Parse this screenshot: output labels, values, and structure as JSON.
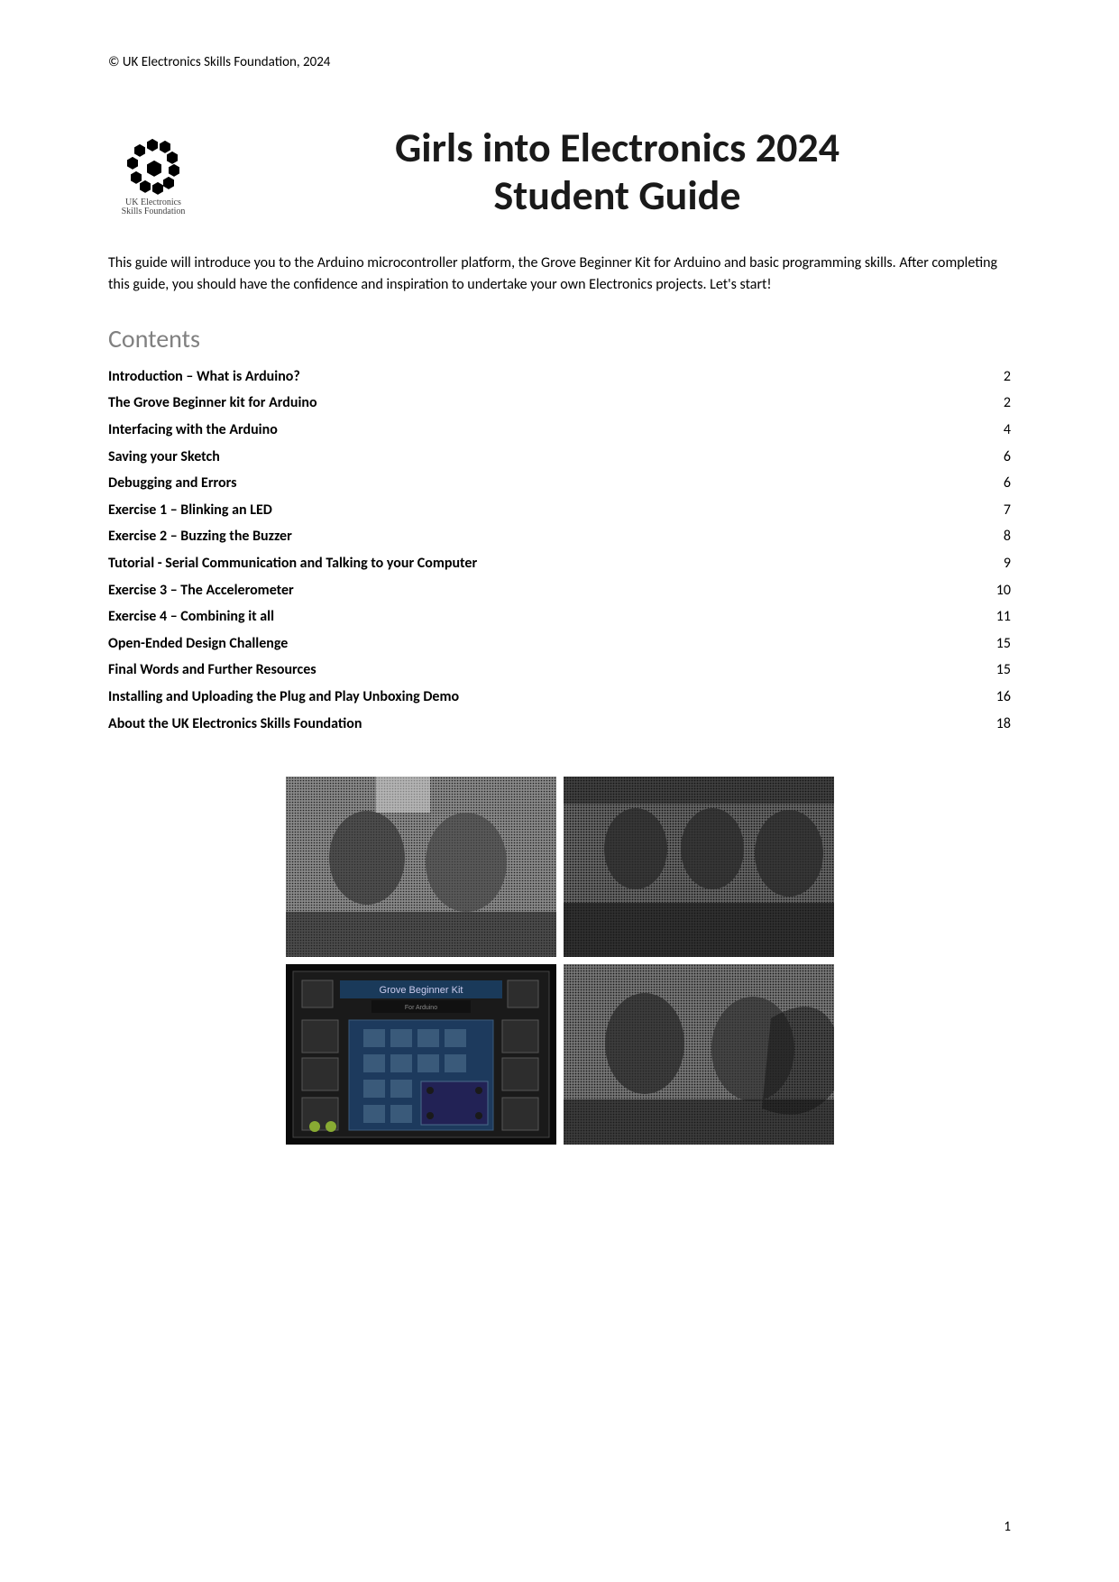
{
  "copyright": "© UK Electronics Skills Foundation, 2024",
  "logo": {
    "line1": "UK Electronics",
    "line2": "Skills Foundation"
  },
  "title": {
    "line1": "Girls into Electronics 2024",
    "line2": "Student Guide"
  },
  "intro": "This guide will introduce you to the Arduino microcontroller platform, the Grove Beginner Kit for Arduino and basic programming skills. After completing this guide, you should have the confidence and inspiration to undertake your own Electronics projects. Let's start!",
  "contents_heading": "Contents",
  "toc": [
    {
      "title": "Introduction – What is Arduino?",
      "page": "2",
      "bold": true
    },
    {
      "title": "The Grove Beginner kit for Arduino",
      "page": "2",
      "bold": true
    },
    {
      "title": "Interfacing with the Arduino",
      "page": "4",
      "bold": true
    },
    {
      "title": "Saving your Sketch",
      "page": "6",
      "bold": true
    },
    {
      "title": "Debugging and Errors",
      "page": "6",
      "bold": true
    },
    {
      "title": "Exercise 1 – Blinking an LED",
      "page": "7",
      "bold": true
    },
    {
      "title": "Exercise 2 – Buzzing the Buzzer",
      "page": "8",
      "bold": true
    },
    {
      "title": "Tutorial - Serial Communication and Talking to your Computer",
      "page": "9",
      "bold": true
    },
    {
      "title": "Exercise 3 – The Accelerometer",
      "page": "10",
      "bold": true
    },
    {
      "title": "Exercise 4 – Combining it all",
      "page": "11",
      "bold": true
    },
    {
      "title": "Open-Ended Design Challenge",
      "page": "15",
      "bold": true
    },
    {
      "title": "Final Words and Further Resources",
      "page": "15",
      "bold": true
    },
    {
      "title": "Installing and Uploading the Plug and Play Unboxing Demo",
      "page": "16",
      "bold": true
    },
    {
      "title": "About the UK Electronics Skills Foundation",
      "page": "18",
      "bold": true
    }
  ],
  "photos": {
    "grove_label": "Grove Beginner Kit",
    "grove_sub": "For Arduino"
  },
  "page_number": "1",
  "colors": {
    "text": "#000000",
    "heading_grey": "#808080",
    "title_dark": "#1a1a1a",
    "background": "#ffffff"
  },
  "typography": {
    "body_fontsize": 16,
    "title_fontsize": 46,
    "contents_fontsize": 28,
    "copyright_fontsize": 15
  }
}
